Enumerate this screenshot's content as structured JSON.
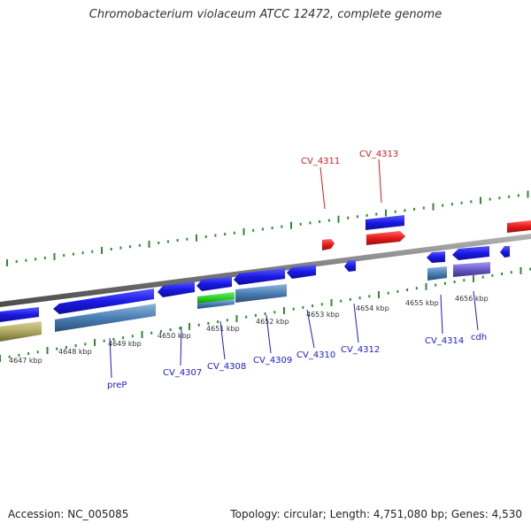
{
  "title": "Chromobacterium violaceum ATCC 12472, complete genome",
  "footer": {
    "accession": "Accession: NC_005085",
    "summary": "Topology: circular; Length: 4,751,080 bp; Genes: 4,530"
  },
  "colors": {
    "forward_gene": "#1a1ae6",
    "reverse_gene": "#e61a1a",
    "label_blue": "#1a1acc",
    "label_red": "#cc1a1a",
    "tick_green": "#2e8b2e",
    "backbone": "#8c8c8c"
  },
  "kbp_labels": [
    "4647 kbp",
    "4648 kbp",
    "4649 kbp",
    "4650 kbp",
    "4651 kbp",
    "4652 kbp",
    "4653 kbp",
    "4654 kbp",
    "4655 kbp",
    "4656 kbp"
  ],
  "gene_labels": {
    "prep": "preP",
    "cv4307": "CV_4307",
    "cv4308": "CV_4308",
    "cv4309": "CV_4309",
    "cv4310": "CV_4310",
    "cv4312": "CV_4312",
    "cv4314": "CV_4314",
    "cdh": "cdh",
    "cv4311": "CV_4311",
    "cv4313": "CV_4313"
  }
}
